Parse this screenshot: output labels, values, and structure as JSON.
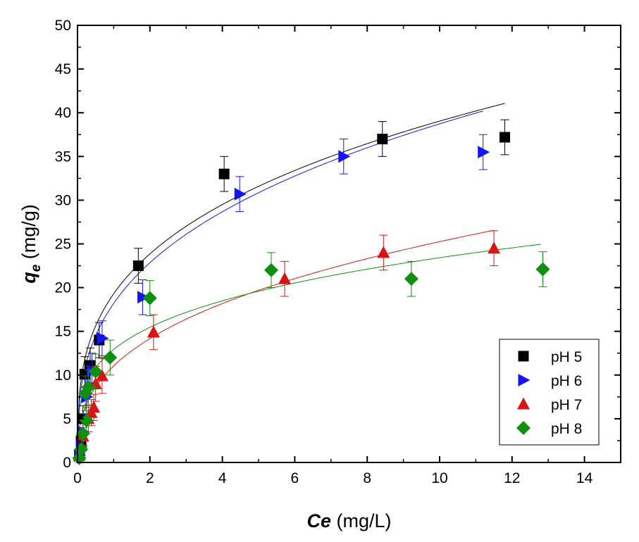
{
  "chart_data": {
    "type": "scatter",
    "xlabel": {
      "symbol": "Ce",
      "unit": " (mg/L)"
    },
    "ylabel": {
      "symbol": "q",
      "subscript": "e",
      "unit": " (mg/g)"
    },
    "xlim": [
      0,
      15
    ],
    "ylim": [
      0,
      50
    ],
    "x_ticks": [
      0,
      2,
      4,
      6,
      8,
      10,
      12,
      14
    ],
    "y_ticks": [
      0,
      5,
      10,
      15,
      20,
      25,
      30,
      35,
      40,
      45,
      50
    ],
    "grid": false,
    "legend_position": "bottom-right",
    "series": [
      {
        "name": "pH 5",
        "marker": "square",
        "color": "#000000",
        "points": [
          {
            "x": 0.05,
            "y": 0.8,
            "err": 0.5
          },
          {
            "x": 0.1,
            "y": 2.5,
            "err": 1.0
          },
          {
            "x": 0.15,
            "y": 5.0,
            "err": 1.5
          },
          {
            "x": 0.2,
            "y": 10.1,
            "err": 2.0
          },
          {
            "x": 0.35,
            "y": 11.1,
            "err": 2.0
          },
          {
            "x": 0.6,
            "y": 14.0,
            "err": 2.0
          },
          {
            "x": 1.68,
            "y": 22.5,
            "err": 2.0
          },
          {
            "x": 4.05,
            "y": 33.0,
            "err": 2.0
          },
          {
            "x": 8.42,
            "y": 37.0,
            "err": 2.0
          },
          {
            "x": 11.8,
            "y": 37.2,
            "err": 2.0
          }
        ],
        "fit": {
          "model": "freundlich",
          "k": 19.3,
          "n": 0.306,
          "xmax": 11.8
        }
      },
      {
        "name": "pH 6",
        "marker": "triangle-right",
        "color": "#1515f0",
        "points": [
          {
            "x": 0.05,
            "y": 0.8,
            "err": 0.5
          },
          {
            "x": 0.1,
            "y": 1.8,
            "err": 0.8
          },
          {
            "x": 0.15,
            "y": 3.5,
            "err": 1.5
          },
          {
            "x": 0.25,
            "y": 7.5,
            "err": 2.0
          },
          {
            "x": 0.4,
            "y": 10.5,
            "err": 2.0
          },
          {
            "x": 0.68,
            "y": 14.2,
            "err": 2.0
          },
          {
            "x": 1.8,
            "y": 18.9,
            "err": 2.0
          },
          {
            "x": 4.48,
            "y": 30.7,
            "err": 2.0
          },
          {
            "x": 7.35,
            "y": 35.0,
            "err": 2.0
          },
          {
            "x": 11.2,
            "y": 35.5,
            "err": 2.0
          }
        ],
        "fit": {
          "model": "freundlich",
          "k": 18.2,
          "n": 0.328,
          "xmax": 11.2
        }
      },
      {
        "name": "pH 7",
        "marker": "triangle-up",
        "color": "#d81414",
        "points": [
          {
            "x": 0.05,
            "y": 0.8,
            "err": 0.5
          },
          {
            "x": 0.15,
            "y": 3.0,
            "err": 1.0
          },
          {
            "x": 0.3,
            "y": 5.0,
            "err": 1.5
          },
          {
            "x": 0.38,
            "y": 5.7,
            "err": 1.5
          },
          {
            "x": 0.45,
            "y": 6.3,
            "err": 1.5
          },
          {
            "x": 0.5,
            "y": 9.0,
            "err": 2.0
          },
          {
            "x": 0.68,
            "y": 9.9,
            "err": 2.0
          },
          {
            "x": 2.1,
            "y": 14.9,
            "err": 2.0
          },
          {
            "x": 5.72,
            "y": 21.0,
            "err": 2.0
          },
          {
            "x": 8.45,
            "y": 24.0,
            "err": 2.0
          },
          {
            "x": 11.5,
            "y": 24.5,
            "err": 2.0
          }
        ],
        "fit": {
          "model": "freundlich",
          "k": 11.05,
          "n": 0.359,
          "xmax": 11.5
        }
      },
      {
        "name": "pH 8",
        "marker": "diamond",
        "color": "#108f10",
        "points": [
          {
            "x": 0.05,
            "y": 0.5,
            "err": 0.5
          },
          {
            "x": 0.1,
            "y": 1.5,
            "err": 1.0
          },
          {
            "x": 0.15,
            "y": 3.3,
            "err": 1.5
          },
          {
            "x": 0.25,
            "y": 4.8,
            "err": 1.5
          },
          {
            "x": 0.22,
            "y": 7.9,
            "err": 2.0
          },
          {
            "x": 0.3,
            "y": 8.6,
            "err": 2.0
          },
          {
            "x": 0.5,
            "y": 10.4,
            "err": 2.0
          },
          {
            "x": 0.9,
            "y": 12.0,
            "err": 2.0
          },
          {
            "x": 2.0,
            "y": 18.8,
            "err": 2.0
          },
          {
            "x": 5.35,
            "y": 22.0,
            "err": 2.0
          },
          {
            "x": 9.22,
            "y": 21.0,
            "err": 2.0
          },
          {
            "x": 12.85,
            "y": 22.1,
            "err": 2.0
          }
        ],
        "fit": {
          "model": "freundlich",
          "k": 12.93,
          "n": 0.258,
          "xmax": 12.8
        }
      }
    ]
  }
}
